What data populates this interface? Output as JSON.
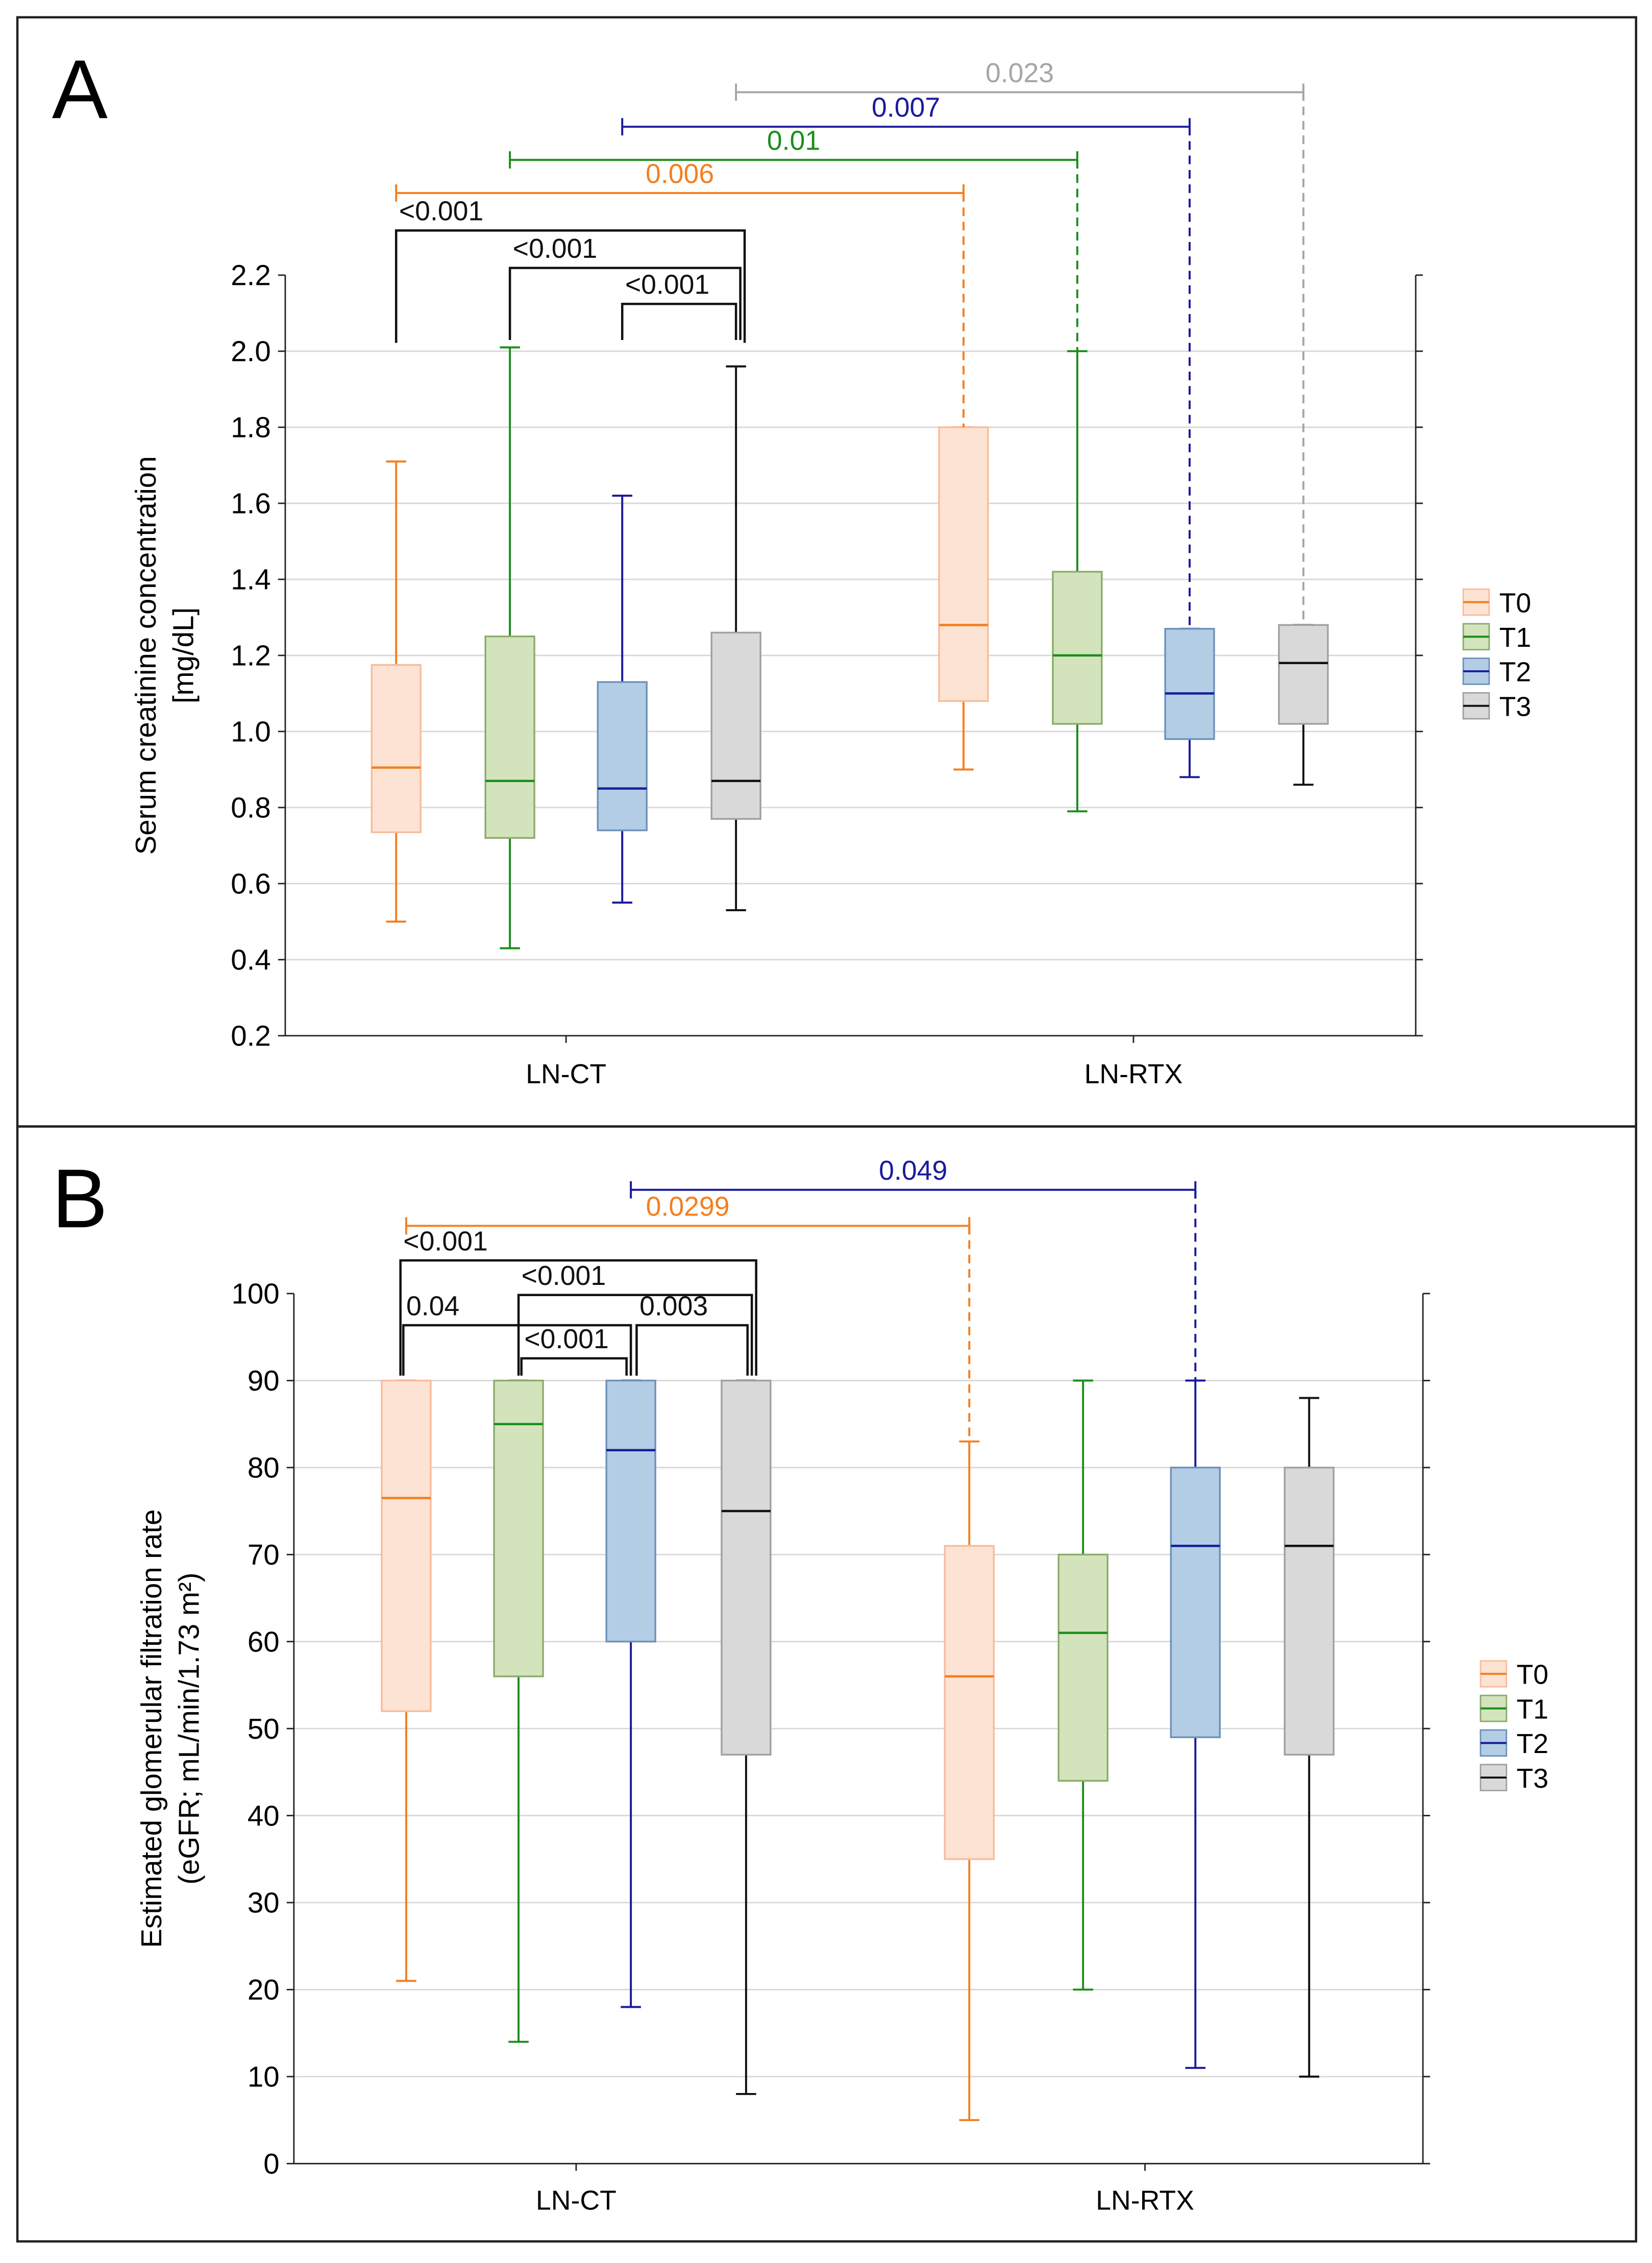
{
  "chart_data": [
    {
      "type": "box",
      "panel_label": "A",
      "title": "",
      "xlabel": "",
      "ylabel": [
        "Serum creatinine concentration",
        "[mg/dL]"
      ],
      "ylim": [
        0.2,
        2.2
      ],
      "yticks": [
        "0.2",
        "0.4",
        "0.6",
        "0.8",
        "1.0",
        "1.2",
        "1.4",
        "1.6",
        "1.8",
        "2.0",
        "2.2"
      ],
      "ytick_values": [
        0.2,
        0.4,
        0.6,
        0.8,
        1.0,
        1.2,
        1.4,
        1.6,
        1.8,
        2.0,
        2.2
      ],
      "grid": true,
      "categories": [
        "LN-CT",
        "LN-RTX"
      ],
      "legend": {
        "position": "right",
        "entries": [
          "T0",
          "T1",
          "T2",
          "T3"
        ]
      },
      "boxes": [
        {
          "group": "LN-CT",
          "series": "T0",
          "min": 0.5,
          "q1": 0.735,
          "median": 0.905,
          "q3": 1.175,
          "max": 1.71
        },
        {
          "group": "LN-CT",
          "series": "T1",
          "min": 0.43,
          "q1": 0.72,
          "median": 0.87,
          "q3": 1.25,
          "max": 2.01
        },
        {
          "group": "LN-CT",
          "series": "T2",
          "min": 0.55,
          "q1": 0.74,
          "median": 0.85,
          "q3": 1.13,
          "max": 1.62
        },
        {
          "group": "LN-CT",
          "series": "T3",
          "min": 0.53,
          "q1": 0.77,
          "median": 0.87,
          "q3": 1.26,
          "max": 1.96
        },
        {
          "group": "LN-RTX",
          "series": "T0",
          "min": 0.9,
          "q1": 1.08,
          "median": 1.28,
          "q3": 1.8,
          "max": 1.8
        },
        {
          "group": "LN-RTX",
          "series": "T1",
          "min": 0.79,
          "q1": 1.02,
          "median": 1.2,
          "q3": 1.42,
          "max": 2.0
        },
        {
          "group": "LN-RTX",
          "series": "T2",
          "min": 0.88,
          "q1": 0.98,
          "median": 1.1,
          "q3": 1.27,
          "max": 1.27
        },
        {
          "group": "LN-RTX",
          "series": "T3",
          "min": 0.86,
          "q1": 1.02,
          "median": 1.18,
          "q3": 1.28,
          "max": 1.28
        }
      ],
      "comparisons": [
        {
          "label": "<0.001",
          "from": 0,
          "to": 3,
          "color": "#111111",
          "kind": "bracket"
        },
        {
          "label": "<0.001",
          "from": 1,
          "to": 3,
          "color": "#111111",
          "kind": "bracket"
        },
        {
          "label": "<0.001",
          "from": 2,
          "to": 3,
          "color": "#111111",
          "kind": "bracket"
        },
        {
          "label": "0.006",
          "from": 0,
          "to": 4,
          "color": "#F47F20",
          "kind": "between-groups"
        },
        {
          "label": "0.01",
          "from": 1,
          "to": 5,
          "color": "#1B8E1B",
          "kind": "between-groups"
        },
        {
          "label": "0.007",
          "from": 2,
          "to": 6,
          "color": "#1A1A9C",
          "kind": "between-groups"
        },
        {
          "label": "0.023",
          "from": 3,
          "to": 7,
          "color": "#A6A6A6",
          "kind": "between-groups"
        }
      ]
    },
    {
      "type": "box",
      "panel_label": "B",
      "title": "",
      "xlabel": "",
      "ylabel": [
        "Estimated glomerular filtration rate",
        "(eGFR; mL/min/1.73 m²)"
      ],
      "ylim": [
        0,
        100
      ],
      "yticks": [
        "0",
        "10",
        "20",
        "30",
        "40",
        "50",
        "60",
        "70",
        "80",
        "90",
        "100"
      ],
      "ytick_values": [
        0,
        10,
        20,
        30,
        40,
        50,
        60,
        70,
        80,
        90,
        100
      ],
      "grid": true,
      "categories": [
        "LN-CT",
        "LN-RTX"
      ],
      "legend": {
        "position": "right",
        "entries": [
          "T0",
          "T1",
          "T2",
          "T3"
        ]
      },
      "boxes": [
        {
          "group": "LN-CT",
          "series": "T0",
          "min": 21,
          "q1": 52,
          "median": 76.5,
          "q3": 90,
          "max": 90
        },
        {
          "group": "LN-CT",
          "series": "T1",
          "min": 14,
          "q1": 56,
          "median": 85,
          "q3": 90,
          "max": 90
        },
        {
          "group": "LN-CT",
          "series": "T2",
          "min": 18,
          "q1": 60,
          "median": 82,
          "q3": 90,
          "max": 90
        },
        {
          "group": "LN-CT",
          "series": "T3",
          "min": 8,
          "q1": 47,
          "median": 75,
          "q3": 90,
          "max": 90
        },
        {
          "group": "LN-RTX",
          "series": "T0",
          "min": 5,
          "q1": 35,
          "median": 56,
          "q3": 71,
          "max": 83
        },
        {
          "group": "LN-RTX",
          "series": "T1",
          "min": 20,
          "q1": 44,
          "median": 61,
          "q3": 70,
          "max": 90
        },
        {
          "group": "LN-RTX",
          "series": "T2",
          "min": 11,
          "q1": 49,
          "median": 71,
          "q3": 80,
          "max": 90
        },
        {
          "group": "LN-RTX",
          "series": "T3",
          "min": 10,
          "q1": 47,
          "median": 71,
          "q3": 80,
          "max": 88
        }
      ],
      "comparisons": [
        {
          "label": "<0.001",
          "from": 0,
          "to": 3,
          "color": "#111111",
          "kind": "bracket"
        },
        {
          "label": "<0.001",
          "from": 1,
          "to": 3,
          "color": "#111111",
          "kind": "bracket"
        },
        {
          "label": "0.04",
          "from": 0,
          "to": 2,
          "color": "#111111",
          "kind": "bracket"
        },
        {
          "label": "0.003",
          "from": 2,
          "to": 3,
          "color": "#111111",
          "kind": "bracket"
        },
        {
          "label": "<0.001",
          "from": 1,
          "to": 2,
          "color": "#111111",
          "kind": "bracket"
        },
        {
          "label": "0.0299",
          "from": 0,
          "to": 4,
          "color": "#F47F20",
          "kind": "between-groups"
        },
        {
          "label": "0.049",
          "from": 2,
          "to": 6,
          "color": "#1A1A9C",
          "kind": "between-groups"
        }
      ]
    }
  ],
  "series_colors": {
    "T0": {
      "line": "#F47F20",
      "fill": "#FDE3D3",
      "edge": "#F7BC9C"
    },
    "T1": {
      "line": "#1B8E1B",
      "fill": "#D3E4BD",
      "edge": "#8CAB6C"
    },
    "T2": {
      "line": "#1A1A9C",
      "fill": "#B3CDE5",
      "edge": "#6D91B9"
    },
    "T3": {
      "line": "#111111",
      "fill": "#D9D9D9",
      "edge": "#A0A0A0"
    }
  }
}
